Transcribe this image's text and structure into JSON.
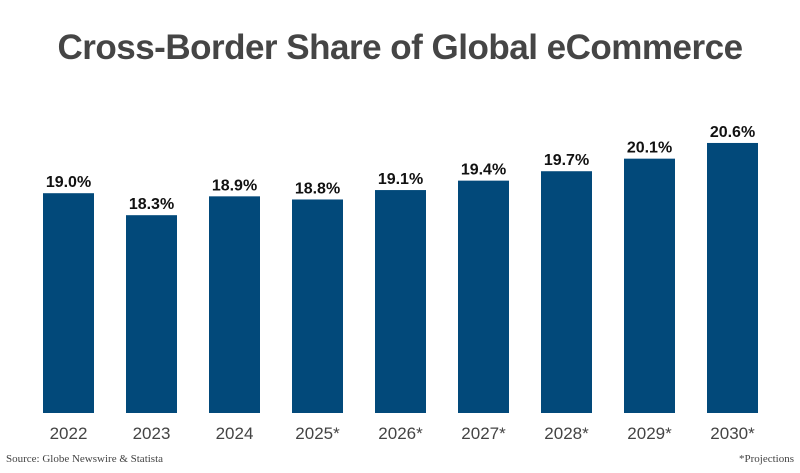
{
  "chart_data": {
    "type": "bar",
    "title": "Cross-Border Share of Global eCommerce",
    "categories": [
      "2022",
      "2023",
      "2024",
      "2025*",
      "2026*",
      "2027*",
      "2028*",
      "2029*",
      "2030*"
    ],
    "values": [
      19.0,
      18.3,
      18.9,
      18.8,
      19.1,
      19.4,
      19.7,
      20.1,
      20.6
    ],
    "data_labels": [
      "19.0%",
      "18.3%",
      "18.9%",
      "18.8%",
      "19.1%",
      "19.4%",
      "19.7%",
      "20.1%",
      "20.6%"
    ],
    "xlabel": "",
    "ylabel": "",
    "ylim": [
      12,
      21
    ],
    "grid": false,
    "bar_color": "#02497A"
  },
  "footer": {
    "source": "Source: Globe Newswire & Statista",
    "note": "*Projections"
  }
}
